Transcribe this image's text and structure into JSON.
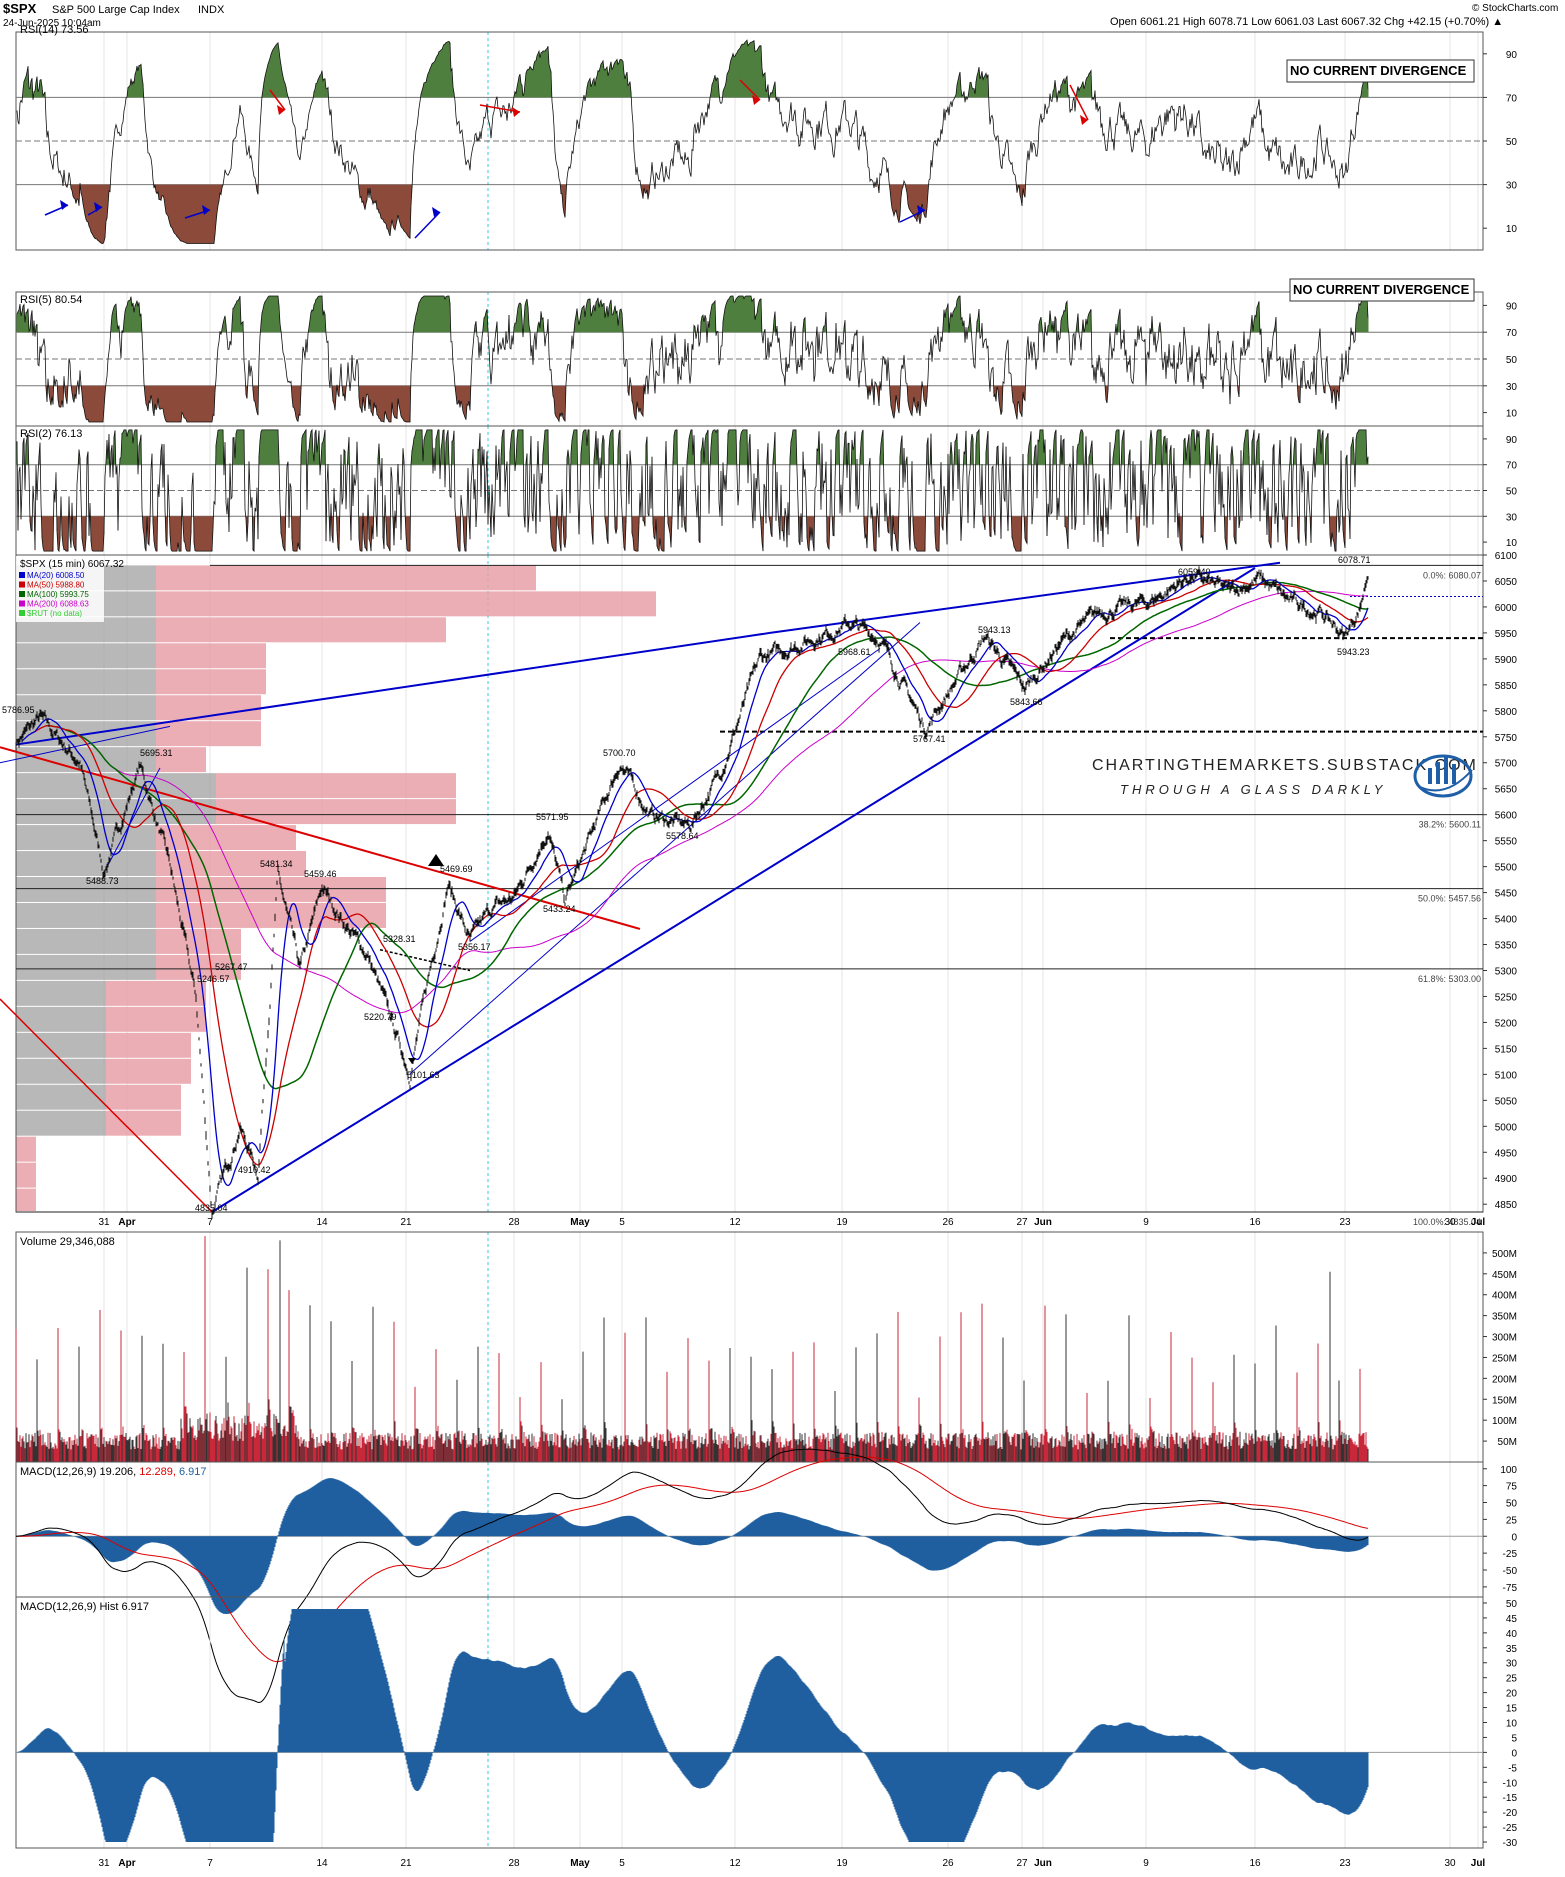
{
  "header": {
    "symbol": "$SPX",
    "name": "S&P 500 Large Cap Index",
    "exchange": "INDX",
    "date": "24-Jun-2025 10:04am",
    "ohlc_line": "Open 6061.21  High 6078.71  Low 6061.03  Last 6067.32  Chg +42.15 (+0.70%) ▲",
    "brand": "© StockCharts.com"
  },
  "watermark": {
    "site": "CHARTINGTHEMARKETS.SUBSTACK.COM",
    "tagline": "THROUGH A GLASS DARKLY"
  },
  "x_axis": {
    "labels": [
      "31",
      "Apr",
      "7",
      "14",
      "21",
      "28",
      "May",
      "5",
      "12",
      "19",
      "26",
      "27",
      "Jun",
      "9",
      "16",
      "23",
      "30",
      "Jul"
    ],
    "bold_labels": [
      "Apr",
      "May",
      "Jun",
      "Jul"
    ]
  },
  "chart_data": [
    {
      "type": "line",
      "name": "rsi14",
      "title": "RSI(14) 73.56",
      "ylim": [
        0,
        100
      ],
      "yticks": [
        10,
        30,
        50,
        70,
        90
      ],
      "levels": [
        30,
        50,
        70
      ],
      "last": 73.56,
      "annotation": "NO CURRENT DIVERGENCE"
    },
    {
      "type": "line",
      "name": "rsi5",
      "title": "RSI(5) 80.54",
      "ylim": [
        0,
        100
      ],
      "yticks": [
        10,
        30,
        50,
        70,
        90
      ],
      "levels": [
        30,
        50,
        70
      ],
      "last": 80.54,
      "annotation": "NO CURRENT DIVERGENCE"
    },
    {
      "type": "line",
      "name": "rsi2",
      "title": "RSI(2) 76.13",
      "ylim": [
        0,
        100
      ],
      "yticks": [
        10,
        30,
        50,
        70,
        90
      ],
      "levels": [
        30,
        50,
        70
      ],
      "last": 76.13
    },
    {
      "type": "line",
      "name": "price",
      "title": "$SPX (15 min) 6067.32",
      "ylim": [
        4835,
        6100
      ],
      "yticks": [
        4850,
        4900,
        4950,
        5000,
        5050,
        5100,
        5150,
        5200,
        5250,
        5300,
        5350,
        5400,
        5450,
        5500,
        5550,
        5600,
        5650,
        5700,
        5750,
        5800,
        5850,
        5900,
        5950,
        6000,
        6050,
        6100
      ],
      "legend": [
        {
          "label": "MA(20) 6008.50",
          "color": "#0000cc"
        },
        {
          "label": "MA(50) 5988.80",
          "color": "#cc0000"
        },
        {
          "label": "MA(100) 5993.75",
          "color": "#006600"
        },
        {
          "label": "MA(200) 6088.63",
          "color": "#cc00cc"
        },
        {
          "label": "$RUT (no data)",
          "color": "#33cc33"
        }
      ],
      "key_points": [
        {
          "x": "Mar 28",
          "y": 5786.95,
          "label": "5786.95"
        },
        {
          "x": "Apr 2",
          "y": 5695.31,
          "label": "5695.31"
        },
        {
          "x": "Mar 31",
          "y": 5488.73,
          "label": "5488.73"
        },
        {
          "x": "Apr 4",
          "y": 5246.57,
          "label": "5246.57"
        },
        {
          "x": "Apr 4",
          "y": 5267.47,
          "label": "5267.47"
        },
        {
          "x": "Apr 7",
          "y": 4835.04,
          "label": "4835.04"
        },
        {
          "x": "Apr 8",
          "y": 4910.42,
          "label": "4910.42"
        },
        {
          "x": "Apr 9",
          "y": 5481.34,
          "label": "5481.34"
        },
        {
          "x": "Apr 11",
          "y": 5459.46,
          "label": "5459.46"
        },
        {
          "x": "Apr 16",
          "y": 5328.31,
          "label": "5328.31"
        },
        {
          "x": "Apr 17",
          "y": 5220.79,
          "label": "5220.79"
        },
        {
          "x": "Apr 21",
          "y": 5101.63,
          "label": "5101.63"
        },
        {
          "x": "Apr 23",
          "y": 5469.69,
          "label": "5469.69"
        },
        {
          "x": "Apr 24",
          "y": 5356.17,
          "label": "5356.17"
        },
        {
          "x": "May 1",
          "y": 5571.95,
          "label": "5571.95"
        },
        {
          "x": "Apr 30",
          "y": 5433.24,
          "label": "5433.24"
        },
        {
          "x": "May 2",
          "y": 5700.7,
          "label": "5700.70"
        },
        {
          "x": "May 7",
          "y": 5578.64,
          "label": "5578.64"
        },
        {
          "x": "May 19",
          "y": 5968.61,
          "label": "5968.61"
        },
        {
          "x": "May 23",
          "y": 5767.41,
          "label": "5767.41"
        },
        {
          "x": "May 28",
          "y": 5943.13,
          "label": "5943.13"
        },
        {
          "x": "May 30",
          "y": 5843.66,
          "label": "5843.66"
        },
        {
          "x": "Jun 11",
          "y": 6059.4,
          "label": "6059.40"
        },
        {
          "x": "Jun 24",
          "y": 6078.71,
          "label": "6078.71"
        },
        {
          "x": "Jun 23",
          "y": 5943.23,
          "label": "5943.23"
        }
      ],
      "fib_levels": [
        {
          "label": "0.0%: 6080.07",
          "value": 6080.07
        },
        {
          "label": "38.2%: 5600.11",
          "value": 5600.11
        },
        {
          "label": "50.0%: 5457.56",
          "value": 5457.56
        },
        {
          "label": "61.8%: 5303.00",
          "value": 5303.0
        },
        {
          "label": "100.0%: 4835.04",
          "value": 4835.04
        }
      ],
      "support_dashed": [
        5940,
        5760
      ],
      "last": 6067.32
    },
    {
      "type": "bar",
      "name": "volume",
      "title": "Volume 29,346,088",
      "ylim": [
        0,
        550
      ],
      "yticks": [
        50,
        100,
        150,
        200,
        250,
        300,
        350,
        400,
        450,
        500
      ],
      "ytick_labels": [
        "50M",
        "100M",
        "150M",
        "200M",
        "250M",
        "300M",
        "350M",
        "400M",
        "450M",
        "500M"
      ],
      "last": 29346088
    },
    {
      "type": "line",
      "name": "macd",
      "title": "MACD(12,26,9) 19.206, 12.289, 6.917",
      "title_parts": {
        "label": "MACD(12,26,9)",
        "macd": "19.206,",
        "signal": "12.289,",
        "hist": "6.917"
      },
      "ylim": [
        -90,
        110
      ],
      "yticks": [
        -75,
        -50,
        -25,
        0,
        25,
        50,
        75,
        100
      ]
    },
    {
      "type": "bar",
      "name": "macd_hist",
      "title": "MACD(12,26,9) Hist 6.917",
      "ylim": [
        -32,
        52
      ],
      "yticks": [
        -30,
        -25,
        -20,
        -15,
        -10,
        -5,
        0,
        5,
        10,
        15,
        20,
        25,
        30,
        35,
        40,
        45,
        50
      ]
    }
  ],
  "colors": {
    "frame": "#555555",
    "blue_line": "#0000cc",
    "red_line": "#dd0000",
    "green_fill": "#4f7f3f",
    "brown_fill": "#8b4a3a",
    "profile_red": "#e8a0a8",
    "profile_grey": "#a0a0a0",
    "hist_blue": "#1f5f9f",
    "cyan_marker": "#33ccdd"
  }
}
